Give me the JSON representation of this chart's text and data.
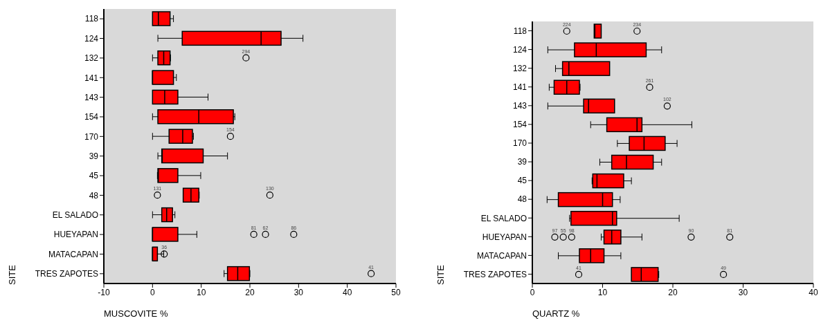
{
  "chart_data": [
    {
      "type": "box",
      "orientation": "horizontal",
      "xlabel": "MUSCOVITE %",
      "ylabel": "SITE",
      "color": "#ff0000",
      "xlim": [
        -10,
        50
      ],
      "xticks": [
        -10,
        0,
        10,
        20,
        30,
        40,
        50
      ],
      "grid": false,
      "categories": [
        "118",
        "124",
        "132",
        "141",
        "143",
        "154",
        "170",
        "39",
        "45",
        "48",
        "EL SALADO",
        "HUEYAPAN",
        "MATACAPAN",
        "TRES ZAPOTES"
      ],
      "boxes": [
        {
          "low": 0,
          "q1": 0,
          "median": 1.2,
          "q3": 3.6,
          "high": 4.3
        },
        {
          "low": 1.1,
          "q1": 6.1,
          "median": 22.3,
          "q3": 26.4,
          "high": 30.9
        },
        {
          "low": 0,
          "q1": 1.1,
          "median": 2.3,
          "q3": 3.6,
          "high": 3.7,
          "outliers": [
            19.2
          ]
        },
        {
          "low": 0,
          "q1": 0,
          "median": 0,
          "q3": 4.3,
          "high": 4.9
        },
        {
          "low": 0,
          "q1": 0,
          "median": 2.5,
          "q3": 5.2,
          "high": 11.4
        },
        {
          "low": 0,
          "q1": 1.1,
          "median": 9.5,
          "q3": 16.6,
          "high": 16.9
        },
        {
          "low": 0,
          "q1": 3.4,
          "median": 6.2,
          "q3": 8.2,
          "high": 8.4,
          "outliers": [
            16.0
          ]
        },
        {
          "low": 1.1,
          "q1": 1.9,
          "median": 2.0,
          "q3": 10.4,
          "high": 15.4
        },
        {
          "low": 1.0,
          "q1": 1.1,
          "median": 1.2,
          "q3": 5.2,
          "high": 9.9
        },
        {
          "low": 6.3,
          "q1": 6.3,
          "median": 7.9,
          "q3": 9.5,
          "high": 9.6,
          "outliers": [
            1.0,
            24.1
          ]
        },
        {
          "low": 0,
          "q1": 1.9,
          "median": 2.9,
          "q3": 4.1,
          "high": 4.6
        },
        {
          "low": 0,
          "q1": 0,
          "median": 0,
          "q3": 5.2,
          "high": 9.1,
          "outliers": [
            20.8,
            23.2,
            29.0
          ]
        },
        {
          "low": 0,
          "q1": 0,
          "median": 0,
          "q3": 1.0,
          "high": 2.3,
          "outliers": [
            2.4
          ]
        },
        {
          "low": 14.7,
          "q1": 15.4,
          "median": 17.5,
          "q3": 19.9,
          "high": 20.0,
          "outliers": [
            44.9
          ]
        }
      ],
      "annotations": [
        "294",
        "154",
        "131",
        "130",
        "81",
        "62",
        "86",
        "36",
        "41"
      ]
    },
    {
      "type": "box",
      "orientation": "horizontal",
      "xlabel": "QUARTZ %",
      "ylabel": "SITE",
      "color": "#ff0000",
      "xlim": [
        0,
        40
      ],
      "xticks": [
        0,
        10,
        20,
        30,
        40
      ],
      "grid": false,
      "categories": [
        "118",
        "124",
        "132",
        "141",
        "143",
        "154",
        "170",
        "39",
        "45",
        "48",
        "EL SALADO",
        "HUEYAPAN",
        "MATACAPAN",
        "TRES ZAPOTES"
      ],
      "boxes": [
        {
          "low": 8.8,
          "q1": 8.8,
          "median": 8.9,
          "q3": 9.8,
          "high": 9.8,
          "outliers": [
            4.9,
            14.9
          ]
        },
        {
          "low": 2.2,
          "q1": 6.0,
          "median": 9.1,
          "q3": 16.2,
          "high": 18.4
        },
        {
          "low": 3.3,
          "q1": 4.3,
          "median": 5.2,
          "q3": 11.0,
          "high": 11.0
        },
        {
          "low": 2.4,
          "q1": 3.1,
          "median": 4.9,
          "q3": 6.7,
          "high": 6.8,
          "outliers": [
            16.7
          ]
        },
        {
          "low": 2.2,
          "q1": 7.3,
          "median": 8.0,
          "q3": 11.7,
          "high": 11.7,
          "outliers": [
            19.2
          ]
        },
        {
          "low": 8.3,
          "q1": 10.6,
          "median": 14.9,
          "q3": 15.6,
          "high": 22.7
        },
        {
          "low": 12.1,
          "q1": 13.8,
          "median": 15.9,
          "q3": 18.9,
          "high": 20.6
        },
        {
          "low": 9.6,
          "q1": 11.3,
          "median": 13.4,
          "q3": 17.2,
          "high": 18.4
        },
        {
          "low": 8.5,
          "q1": 8.6,
          "median": 9.2,
          "q3": 13.0,
          "high": 14.1
        },
        {
          "low": 2.1,
          "q1": 3.7,
          "median": 10.0,
          "q3": 11.4,
          "high": 12.5
        },
        {
          "low": 5.3,
          "q1": 5.5,
          "median": 11.4,
          "q3": 12.0,
          "high": 20.9
        },
        {
          "low": 9.8,
          "q1": 10.2,
          "median": 11.3,
          "q3": 12.6,
          "high": 15.6,
          "outliers": [
            3.2,
            4.4,
            5.6,
            22.6,
            28.1
          ]
        },
        {
          "low": 3.7,
          "q1": 6.7,
          "median": 8.3,
          "q3": 10.2,
          "high": 12.6
        },
        {
          "low": 14.1,
          "q1": 14.1,
          "median": 15.5,
          "q3": 17.9,
          "high": 18.0,
          "outliers": [
            6.6,
            27.2
          ]
        }
      ],
      "annotations": [
        "224",
        "234",
        "261",
        "102",
        "97",
        "55",
        "98",
        "90",
        "81",
        "41",
        "49"
      ]
    }
  ]
}
